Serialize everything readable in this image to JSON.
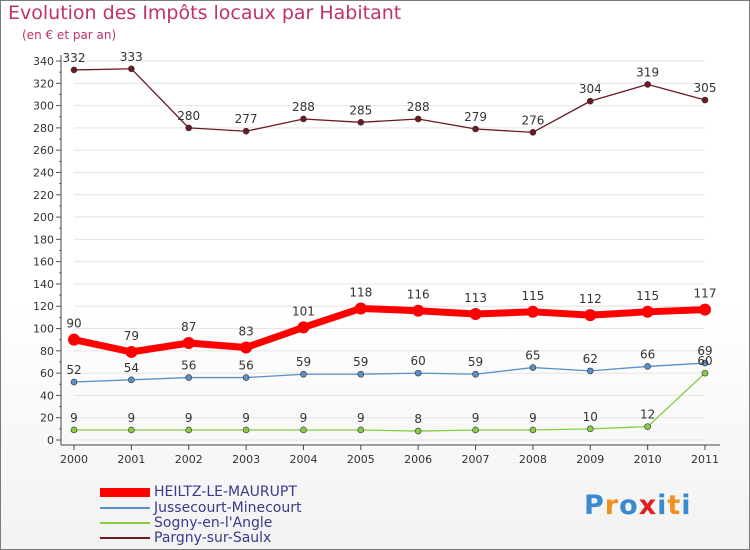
{
  "chart_data": {
    "type": "line",
    "title": "Evolution des Impôts locaux par Habitant",
    "subtitle": "(en € et par an)",
    "categories": [
      "2000",
      "2001",
      "2002",
      "2003",
      "2004",
      "2005",
      "2006",
      "2007",
      "2008",
      "2009",
      "2010",
      "2011"
    ],
    "yticks": [
      0,
      20,
      40,
      60,
      80,
      100,
      120,
      140,
      160,
      180,
      200,
      220,
      240,
      260,
      280,
      300,
      320,
      340
    ],
    "ylim": [
      0,
      340
    ],
    "series": [
      {
        "name": "Pargny-sur-Saulx",
        "color": "#6b1a22",
        "values": [
          332,
          333,
          280,
          277,
          288,
          285,
          288,
          279,
          276,
          304,
          319,
          305
        ]
      },
      {
        "name": "HEILTZ-LE-MAURUPT",
        "color": "#ff0000",
        "values": [
          90,
          79,
          87,
          83,
          101,
          118,
          116,
          113,
          115,
          112,
          115,
          117
        ]
      },
      {
        "name": "Jussecourt-Minecourt",
        "color": "#5a90c8",
        "values": [
          52,
          54,
          56,
          56,
          59,
          59,
          60,
          59,
          65,
          62,
          66,
          69
        ]
      },
      {
        "name": "Sogny-en-l'Angle",
        "color": "#88cc44",
        "values": [
          9,
          9,
          9,
          9,
          9,
          9,
          8,
          9,
          9,
          10,
          12,
          60
        ]
      }
    ],
    "legend": [
      {
        "name": "HEILTZ-LE-MAURUPT",
        "color": "#ff0000"
      },
      {
        "name": "Jussecourt-Minecourt",
        "color": "#5a90c8"
      },
      {
        "name": "Sogny-en-l'Angle",
        "color": "#88cc44"
      },
      {
        "name": "Pargny-sur-Saulx",
        "color": "#6b1a22"
      }
    ]
  },
  "logo": {
    "text": "Proxiti",
    "letters": [
      "P",
      "r",
      "o",
      "x",
      "i",
      "t",
      "i"
    ],
    "colors": [
      "#3a8ad0",
      "#f09020",
      "#3a8ad0",
      "#e02020",
      "#3a8ad0",
      "#f09020",
      "#3a8ad0"
    ]
  }
}
